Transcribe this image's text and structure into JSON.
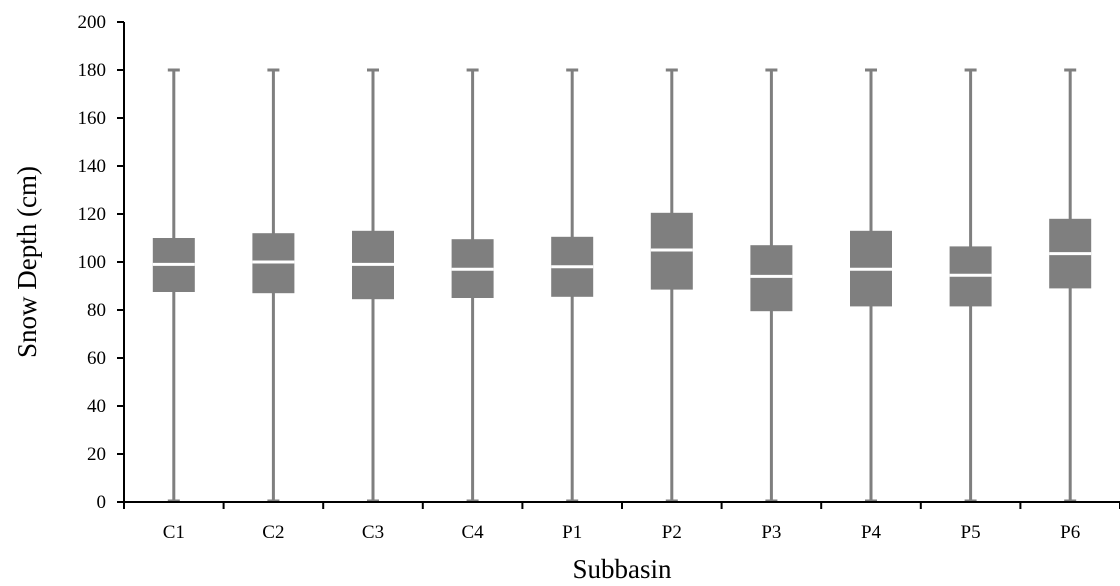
{
  "chart_data": {
    "type": "boxplot",
    "title": "",
    "xlabel": "Subbasin",
    "ylabel": "Snow Depth (cm)",
    "ylim": [
      0,
      200
    ],
    "yticks": [
      0,
      20,
      40,
      60,
      80,
      100,
      120,
      140,
      160,
      180,
      200
    ],
    "categories": [
      "C1",
      "C2",
      "C3",
      "C4",
      "P1",
      "P2",
      "P3",
      "P4",
      "P5",
      "P6"
    ],
    "boxes": [
      {
        "category": "C1",
        "min": 0,
        "q1": 87.5,
        "median": 99,
        "q3": 110,
        "max": 180
      },
      {
        "category": "C2",
        "min": 0,
        "q1": 87,
        "median": 100,
        "q3": 112,
        "max": 180
      },
      {
        "category": "C3",
        "min": 0,
        "q1": 84.5,
        "median": 99,
        "q3": 113,
        "max": 180
      },
      {
        "category": "C4",
        "min": 0,
        "q1": 85,
        "median": 97,
        "q3": 109.5,
        "max": 180
      },
      {
        "category": "P1",
        "min": 0,
        "q1": 85.5,
        "median": 98,
        "q3": 110.5,
        "max": 180
      },
      {
        "category": "P2",
        "min": 0,
        "q1": 88.5,
        "median": 105,
        "q3": 120.5,
        "max": 180
      },
      {
        "category": "P3",
        "min": 0,
        "q1": 79.5,
        "median": 94,
        "q3": 107,
        "max": 180
      },
      {
        "category": "P4",
        "min": 0,
        "q1": 81.5,
        "median": 97,
        "q3": 113,
        "max": 180
      },
      {
        "category": "P5",
        "min": 0,
        "q1": 81.5,
        "median": 94.5,
        "q3": 106.5,
        "max": 180
      },
      {
        "category": "P6",
        "min": 0,
        "q1": 89,
        "median": 103.5,
        "q3": 118,
        "max": 180
      }
    ],
    "box_color": "#7f7f7f",
    "median_color": "#ffffff",
    "axis_color": "#000000",
    "grid": false,
    "legend": "none"
  }
}
